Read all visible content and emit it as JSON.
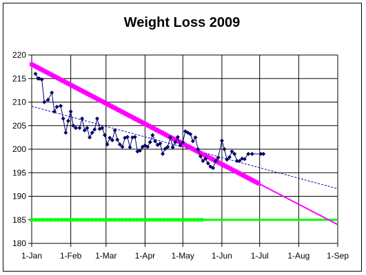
{
  "chart_data": {
    "type": "line",
    "title": "Weight Loss 2009",
    "xlabel": "",
    "ylabel": "",
    "x_ticks": [
      "1-Jan",
      "1-Feb",
      "1-Mar",
      "1-Apr",
      "1-May",
      "1-Jun",
      "1-Jul",
      "1-Aug",
      "1-Sep"
    ],
    "x_range": [
      "2009-01-01",
      "2009-09-01"
    ],
    "y_ticks": [
      180,
      185,
      190,
      195,
      200,
      205,
      210,
      215,
      220
    ],
    "ylim": [
      180,
      220
    ],
    "grid": true,
    "legend": "none",
    "colors": {
      "actual": "#000066",
      "trend": "#000099",
      "target": "#ff00ff",
      "goal": "#00ff00"
    },
    "series": [
      {
        "type": "line-marker",
        "marker": "diamond",
        "x": [
          "2009-01-04",
          "2009-01-06",
          "2009-01-07",
          "2009-01-09",
          "2009-01-11",
          "2009-01-14",
          "2009-01-17",
          "2009-01-19",
          "2009-01-21",
          "2009-01-24",
          "2009-01-26",
          "2009-01-28",
          "2009-01-30",
          "2009-02-01",
          "2009-02-03",
          "2009-02-05",
          "2009-02-08",
          "2009-02-10",
          "2009-02-12",
          "2009-02-14",
          "2009-02-16",
          "2009-02-18",
          "2009-02-20",
          "2009-02-22",
          "2009-02-24",
          "2009-02-26",
          "2009-02-28",
          "2009-03-02",
          "2009-03-04",
          "2009-03-06",
          "2009-03-08",
          "2009-03-10",
          "2009-03-12",
          "2009-03-14",
          "2009-03-16",
          "2009-03-18",
          "2009-03-20",
          "2009-03-22",
          "2009-03-24",
          "2009-03-26",
          "2009-03-28",
          "2009-03-30",
          "2009-04-01",
          "2009-04-03",
          "2009-04-05",
          "2009-04-07",
          "2009-04-09",
          "2009-04-11",
          "2009-04-13",
          "2009-04-15",
          "2009-04-17",
          "2009-04-19",
          "2009-04-21",
          "2009-04-23",
          "2009-04-25",
          "2009-04-27",
          "2009-04-29",
          "2009-05-01",
          "2009-05-03",
          "2009-05-05",
          "2009-05-07",
          "2009-05-09",
          "2009-05-11",
          "2009-05-13",
          "2009-05-15",
          "2009-05-17",
          "2009-05-19",
          "2009-05-21",
          "2009-05-23",
          "2009-05-25",
          "2009-05-27",
          "2009-05-29",
          "2009-06-01",
          "2009-06-03",
          "2009-06-05",
          "2009-06-07",
          "2009-06-09",
          "2009-06-11",
          "2009-06-13",
          "2009-06-15",
          "2009-06-17",
          "2009-06-19",
          "2009-06-22",
          "2009-06-25",
          "2009-07-02",
          "2009-07-04"
        ],
        "values": [
          216,
          215,
          215,
          214.8,
          210,
          210.5,
          212,
          208,
          209,
          209.2,
          206.5,
          203.5,
          206,
          208,
          205,
          204.5,
          204.5,
          206.5,
          204,
          204.5,
          202.5,
          203.5,
          204.2,
          206.5,
          204.3,
          204.5,
          203,
          201,
          202.4,
          201.9,
          204,
          202,
          201,
          200.5,
          202.4,
          202.6,
          200.4,
          202.5,
          202.6,
          199.5,
          199.7,
          200.5,
          200.8,
          200.5,
          201.5,
          203,
          201.7,
          200.9,
          201.2,
          199,
          200.1,
          200.5,
          202.5,
          200.4,
          201.5,
          202.6,
          200.8,
          201.5,
          203.8,
          203.5,
          203.2,
          201.7,
          202.5,
          200,
          198.5,
          197.5,
          198,
          197,
          196.3,
          196,
          197.5,
          198.2,
          201.8,
          200,
          197.8,
          198.3,
          199.5,
          199,
          197.5,
          197.5,
          198,
          197.9,
          199,
          199,
          199,
          199
        ]
      },
      {
        "type": "line-dashed",
        "x": [
          "2009-01-01",
          "2009-09-01"
        ],
        "values": [
          209.1,
          191.6
        ]
      },
      {
        "type": "line-marker",
        "marker": "square",
        "x": [
          "2009-01-01",
          "2009-07-01"
        ],
        "values": [
          218,
          192.6
        ]
      },
      {
        "type": "line",
        "x": [
          "2009-07-01",
          "2009-09-01"
        ],
        "values": [
          192.6,
          184
        ]
      },
      {
        "type": "line-marker",
        "marker": "square",
        "x": [
          "2009-01-01",
          "2009-09-01"
        ],
        "values": [
          185,
          185
        ]
      }
    ]
  }
}
